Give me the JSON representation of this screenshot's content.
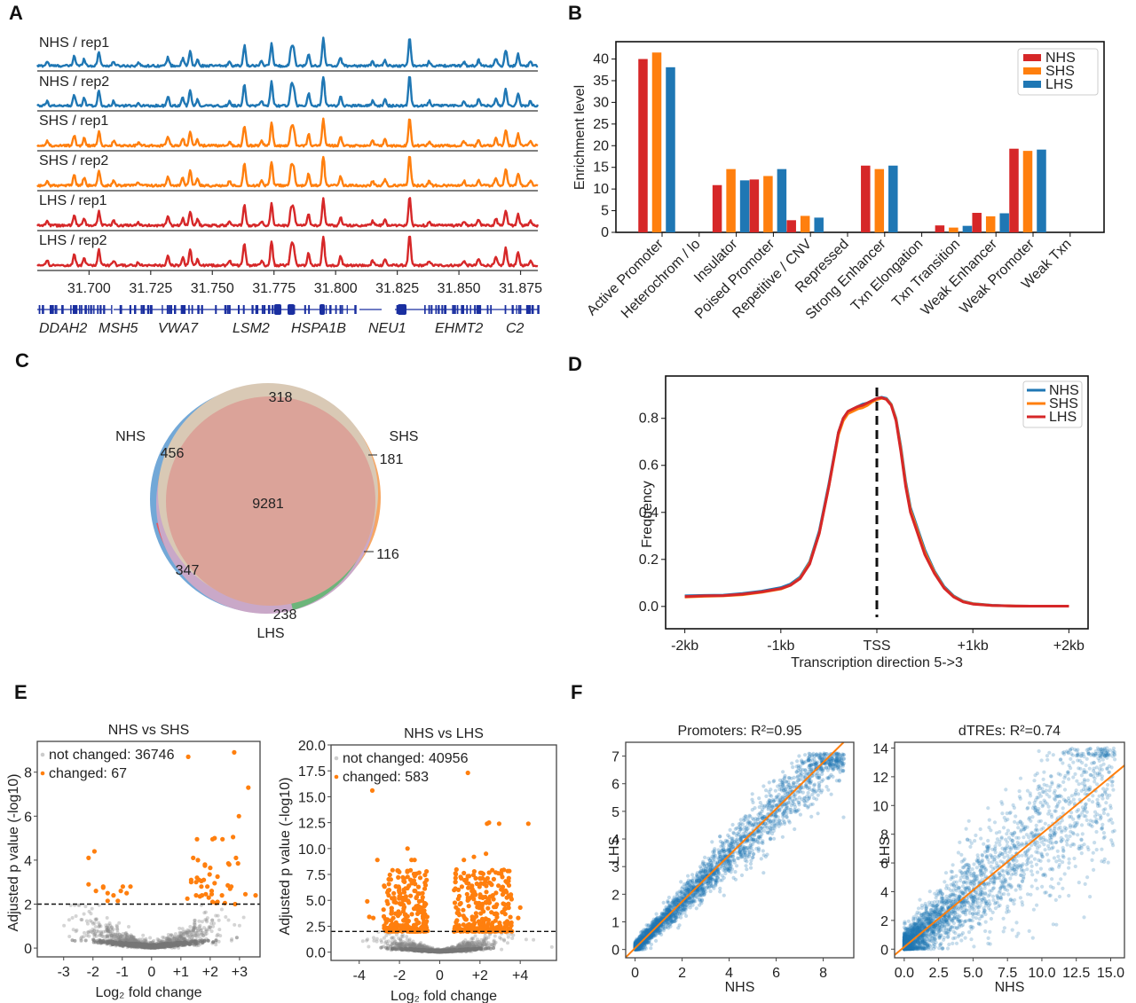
{
  "figure": {
    "panels": [
      "A",
      "B",
      "C",
      "D",
      "E",
      "F"
    ]
  },
  "colors": {
    "NHS": "#1f77b4",
    "SHS": "#ff7f0e",
    "LHS": "#d62728",
    "bar_NHS": "#d62728",
    "bar_SHS": "#ff7f0e",
    "bar_LHS": "#1f77b4",
    "changed": "#ff7f0e",
    "not_changed": "#888888",
    "fit_line": "#ff7f0e",
    "scatter": "#1f77b4",
    "gene_track": "#1a2fa0"
  },
  "chart_data": [
    {
      "panel": "A",
      "type": "line",
      "title": "",
      "tracks": [
        {
          "label": "NHS / rep1",
          "color_key": "NHS"
        },
        {
          "label": "NHS / rep2",
          "color_key": "NHS"
        },
        {
          "label": "SHS / rep1",
          "color_key": "SHS"
        },
        {
          "label": "SHS / rep2",
          "color_key": "SHS"
        },
        {
          "label": "LHS / rep1",
          "color_key": "LHS"
        },
        {
          "label": "LHS / rep2",
          "color_key": "LHS"
        }
      ],
      "xlim": [
        31.679,
        31.882
      ],
      "x_ticks": [
        "31.700",
        "31.725",
        "31.750",
        "31.775",
        "31.800",
        "31.825",
        "31.850",
        "31.875"
      ],
      "x_tick_values": [
        31.7,
        31.725,
        31.75,
        31.775,
        31.8,
        31.825,
        31.85,
        31.875
      ],
      "peaks": [
        {
          "x": 31.683,
          "h": 0.15
        },
        {
          "x": 31.694,
          "h": 0.35
        },
        {
          "x": 31.698,
          "h": 0.25
        },
        {
          "x": 31.704,
          "h": 0.5
        },
        {
          "x": 31.71,
          "h": 0.15
        },
        {
          "x": 31.72,
          "h": 0.1
        },
        {
          "x": 31.732,
          "h": 0.3
        },
        {
          "x": 31.738,
          "h": 0.25
        },
        {
          "x": 31.741,
          "h": 0.5
        },
        {
          "x": 31.744,
          "h": 0.2
        },
        {
          "x": 31.757,
          "h": 0.15
        },
        {
          "x": 31.763,
          "h": 0.7
        },
        {
          "x": 31.77,
          "h": 0.15
        },
        {
          "x": 31.774,
          "h": 0.78
        },
        {
          "x": 31.782,
          "h": 0.6
        },
        {
          "x": 31.783,
          "h": 0.55
        },
        {
          "x": 31.789,
          "h": 0.4
        },
        {
          "x": 31.795,
          "h": 0.95
        },
        {
          "x": 31.802,
          "h": 0.3
        },
        {
          "x": 31.815,
          "h": 0.15
        },
        {
          "x": 31.82,
          "h": 0.2
        },
        {
          "x": 31.83,
          "h": 0.97
        },
        {
          "x": 31.838,
          "h": 0.15
        },
        {
          "x": 31.852,
          "h": 0.15
        },
        {
          "x": 31.858,
          "h": 0.2
        },
        {
          "x": 31.865,
          "h": 0.25
        },
        {
          "x": 31.869,
          "h": 0.55
        },
        {
          "x": 31.874,
          "h": 0.4
        },
        {
          "x": 31.879,
          "h": 0.15
        }
      ],
      "genes": [
        "DDAH2",
        "MSH5",
        "VWA7",
        "LSM2",
        "HSPA1B",
        "NEU1",
        "EHMT2",
        "C2"
      ]
    },
    {
      "panel": "B",
      "type": "bar",
      "title": "",
      "xlabel": "",
      "ylabel": "Enrichment level",
      "ylim": [
        0,
        44
      ],
      "y_ticks": [
        0,
        5,
        10,
        15,
        20,
        25,
        30,
        35,
        40
      ],
      "categories": [
        "Active Promoter",
        "Heterochrom / lo",
        "Insulator",
        "Poised Promoter",
        "Repetitive / CNV",
        "Repressed",
        "Strong Enhancer",
        "Txn Elongation",
        "Txn Transition",
        "Weak Enhancer",
        "Weak Promoter",
        "Weak Txn"
      ],
      "series": [
        {
          "name": "NHS",
          "values": [
            40.0,
            0,
            10.9,
            12.2,
            2.8,
            0,
            15.4,
            0,
            1.6,
            4.5,
            19.3,
            0
          ]
        },
        {
          "name": "SHS",
          "values": [
            41.5,
            0,
            14.6,
            13.0,
            3.8,
            0,
            14.6,
            0,
            1.1,
            3.7,
            18.8,
            0
          ]
        },
        {
          "name": "LHS",
          "values": [
            38.1,
            0,
            12.0,
            14.6,
            3.4,
            0,
            15.4,
            0,
            1.5,
            4.4,
            19.1,
            0
          ]
        }
      ],
      "legend": [
        "NHS",
        "SHS",
        "LHS"
      ],
      "legend_position": "top-right",
      "grid": false
    },
    {
      "panel": "C",
      "type": "venn",
      "sets": [
        "NHS",
        "SHS",
        "LHS"
      ],
      "regions": {
        "all": 9281,
        "NHS_SHS": 318,
        "NHS_only": 456,
        "SHS_only": 181,
        "SHS_LHS": 116,
        "NHS_LHS": 347,
        "LHS_only": 238
      }
    },
    {
      "panel": "D",
      "type": "line",
      "title": "",
      "xlabel": "Transcription direction 5->3",
      "ylabel": "Frequency",
      "x_ticks": [
        "-2kb",
        "-1kb",
        "TSS",
        "+1kb",
        "+2kb"
      ],
      "x_tick_values": [
        -2000,
        -1000,
        0,
        1000,
        2000
      ],
      "xlim": [
        -2200,
        2200
      ],
      "ylim": [
        -0.095,
        0.98
      ],
      "y_ticks": [
        "0.0",
        "0.2",
        "0.4",
        "0.6",
        "0.8"
      ],
      "y_tick_values": [
        0.0,
        0.2,
        0.4,
        0.6,
        0.8
      ],
      "x": [
        -2000,
        -1800,
        -1600,
        -1400,
        -1200,
        -1000,
        -900,
        -800,
        -700,
        -600,
        -500,
        -400,
        -350,
        -300,
        -250,
        -200,
        -150,
        -100,
        -50,
        0,
        50,
        100,
        150,
        200,
        250,
        300,
        350,
        400,
        450,
        500,
        600,
        700,
        800,
        900,
        1000,
        1200,
        1400,
        1600,
        1800,
        2000
      ],
      "series": [
        {
          "name": "NHS",
          "values": [
            0.045,
            0.047,
            0.048,
            0.055,
            0.065,
            0.08,
            0.095,
            0.125,
            0.19,
            0.32,
            0.52,
            0.74,
            0.8,
            0.83,
            0.84,
            0.85,
            0.86,
            0.865,
            0.875,
            0.885,
            0.89,
            0.885,
            0.86,
            0.8,
            0.68,
            0.53,
            0.42,
            0.36,
            0.3,
            0.24,
            0.15,
            0.085,
            0.045,
            0.022,
            0.012,
            0.005,
            0.002,
            0.001,
            0.001,
            0.001
          ]
        },
        {
          "name": "SHS",
          "values": [
            0.04,
            0.043,
            0.045,
            0.05,
            0.06,
            0.074,
            0.09,
            0.12,
            0.185,
            0.31,
            0.51,
            0.73,
            0.79,
            0.82,
            0.83,
            0.84,
            0.845,
            0.855,
            0.87,
            0.88,
            0.885,
            0.882,
            0.858,
            0.795,
            0.67,
            0.52,
            0.41,
            0.35,
            0.29,
            0.23,
            0.145,
            0.08,
            0.042,
            0.02,
            0.011,
            0.004,
            0.002,
            0.001,
            0.001,
            0.001
          ]
        },
        {
          "name": "LHS",
          "values": [
            0.042,
            0.045,
            0.046,
            0.052,
            0.062,
            0.076,
            0.09,
            0.118,
            0.18,
            0.31,
            0.51,
            0.74,
            0.8,
            0.83,
            0.84,
            0.85,
            0.855,
            0.865,
            0.875,
            0.885,
            0.888,
            0.88,
            0.855,
            0.79,
            0.66,
            0.51,
            0.4,
            0.34,
            0.28,
            0.22,
            0.14,
            0.078,
            0.04,
            0.019,
            0.01,
            0.004,
            0.002,
            0.001,
            0.001,
            0.001
          ]
        }
      ],
      "vline": {
        "x": 0,
        "style": "dashed"
      },
      "legend": [
        "NHS",
        "SHS",
        "LHS"
      ],
      "legend_position": "top-right",
      "grid": false
    },
    {
      "panel": "E-left",
      "type": "scatter",
      "title": "NHS vs SHS",
      "xlabel": "Log₂ fold change",
      "ylabel": "Adjusted p value (-log10)",
      "xlim": [
        -3.9,
        3.7
      ],
      "ylim": [
        -0.4,
        9.4
      ],
      "x_ticks": [
        "-3",
        "-2",
        "-1",
        "0",
        "+1",
        "+2",
        "+3"
      ],
      "x_tick_values": [
        -3,
        -2,
        -1,
        0,
        1,
        2,
        3
      ],
      "y_ticks": [
        "0",
        "2",
        "4",
        "6",
        "8"
      ],
      "y_tick_values": [
        0,
        2,
        4,
        6,
        8
      ],
      "threshold": 2,
      "legend": [
        {
          "label": "not changed: 36746",
          "type": "not_changed"
        },
        {
          "label": "changed: 67",
          "type": "changed"
        }
      ],
      "changed_points": [
        [
          -2.15,
          4.1
        ],
        [
          -1.95,
          4.4
        ],
        [
          -2.15,
          2.9
        ],
        [
          -1.9,
          2.6
        ],
        [
          -1.65,
          2.8
        ],
        [
          -1.65,
          2.75
        ],
        [
          -1.5,
          2.5
        ],
        [
          -1.5,
          2.15
        ],
        [
          -1.3,
          2.4
        ],
        [
          -1.15,
          2.15
        ],
        [
          -1.05,
          2.6
        ],
        [
          -0.98,
          2.8
        ],
        [
          -0.85,
          2.5
        ],
        [
          -0.72,
          2.8
        ],
        [
          1.22,
          2.25
        ],
        [
          1.35,
          3.0
        ],
        [
          1.35,
          3.1
        ],
        [
          1.42,
          4.1
        ],
        [
          1.52,
          2.4
        ],
        [
          1.52,
          3.0
        ],
        [
          1.55,
          3.2
        ],
        [
          1.55,
          4.95
        ],
        [
          1.58,
          4.0
        ],
        [
          1.62,
          3.1
        ],
        [
          1.65,
          2.35
        ],
        [
          1.7,
          3.05
        ],
        [
          1.7,
          2.8
        ],
        [
          1.72,
          2.4
        ],
        [
          1.78,
          3.1
        ],
        [
          1.82,
          3.75
        ],
        [
          1.82,
          3.8
        ],
        [
          1.85,
          2.45
        ],
        [
          1.9,
          2.8
        ],
        [
          1.95,
          2.3
        ],
        [
          1.98,
          3.35
        ],
        [
          2.0,
          3.65
        ],
        [
          2.05,
          2.6
        ],
        [
          2.05,
          2.45
        ],
        [
          2.08,
          4.95
        ],
        [
          2.08,
          2.1
        ],
        [
          2.15,
          5.0
        ],
        [
          2.15,
          2.95
        ],
        [
          2.2,
          2.05
        ],
        [
          2.25,
          3.25
        ],
        [
          2.25,
          2.1
        ],
        [
          2.4,
          2.4
        ],
        [
          2.42,
          4.95
        ],
        [
          2.5,
          2.05
        ],
        [
          2.6,
          2.85
        ],
        [
          2.62,
          3.85
        ],
        [
          2.65,
          3.8
        ],
        [
          2.68,
          2.7
        ],
        [
          2.72,
          2.8
        ],
        [
          2.78,
          5.05
        ],
        [
          2.82,
          8.9
        ],
        [
          2.85,
          2.0
        ],
        [
          2.88,
          4.1
        ],
        [
          2.95,
          3.85
        ],
        [
          2.98,
          6.0
        ],
        [
          3.2,
          2.45
        ],
        [
          3.3,
          7.3
        ],
        [
          3.55,
          2.4
        ],
        [
          1.25,
          8.7
        ]
      ]
    },
    {
      "panel": "E-right",
      "type": "scatter",
      "title": "NHS vs LHS",
      "xlabel": "Log₂ fold change",
      "ylabel": "Adjusted p value (-log10)",
      "xlim": [
        -5.4,
        5.8
      ],
      "ylim": [
        -0.8,
        20.0
      ],
      "x_ticks": [
        "-4",
        "-2",
        "0",
        "+2",
        "+4"
      ],
      "x_tick_values": [
        -4,
        -2,
        0,
        2,
        4
      ],
      "y_ticks": [
        "0.0",
        "2.5",
        "5.0",
        "7.5",
        "10.0",
        "12.5",
        "15.0",
        "17.5",
        "20.0"
      ],
      "y_tick_values": [
        0,
        2.5,
        5,
        7.5,
        10,
        12.5,
        15,
        17.5,
        20
      ],
      "threshold": 2,
      "legend": [
        {
          "label": "not changed: 40956",
          "type": "not_changed"
        },
        {
          "label": "changed: 583",
          "type": "changed"
        }
      ],
      "changed_highlights": [
        [
          -3.35,
          15.6
        ],
        [
          1.4,
          17.3
        ],
        [
          2.35,
          12.4
        ],
        [
          2.45,
          12.5
        ],
        [
          2.95,
          12.4
        ],
        [
          4.4,
          12.4
        ],
        [
          -1.6,
          10.0
        ],
        [
          -3.1,
          8.9
        ],
        [
          -1.4,
          8.9
        ],
        [
          -1.25,
          8.9
        ],
        [
          1.2,
          8.9
        ],
        [
          1.7,
          9.2
        ],
        [
          2.3,
          9.5
        ],
        [
          -3.6,
          4.9
        ],
        [
          -3.5,
          3.4
        ],
        [
          -3.3,
          3.3
        ],
        [
          4.0,
          4.3
        ],
        [
          3.9,
          3.3
        ]
      ],
      "changed_cluster_ranges": {
        "left_x": [
          -2.8,
          -0.6
        ],
        "right_x": [
          0.7,
          3.6
        ],
        "y": [
          2.0,
          8.0
        ]
      }
    },
    {
      "panel": "F-left",
      "type": "scatter",
      "title": "Promoters: R²=0.95",
      "xlabel": "NHS",
      "ylabel": "LHS",
      "xlim": [
        -0.4,
        9.3
      ],
      "ylim": [
        -0.3,
        7.5
      ],
      "x_ticks": [
        "0",
        "2",
        "4",
        "6",
        "8"
      ],
      "x_tick_values": [
        0,
        2,
        4,
        6,
        8
      ],
      "y_ticks": [
        "0",
        "1",
        "2",
        "3",
        "4",
        "5",
        "6",
        "7"
      ],
      "y_tick_values": [
        0,
        1,
        2,
        3,
        4,
        5,
        6,
        7
      ],
      "fit": {
        "slope": 0.84,
        "intercept": 0.05
      },
      "r_squared": 0.95
    },
    {
      "panel": "F-right",
      "type": "scatter",
      "title": "dTREs: R²=0.74",
      "xlabel": "NHS",
      "ylabel": "LHS",
      "xlim": [
        -0.7,
        16.0
      ],
      "ylim": [
        -0.6,
        14.4
      ],
      "x_ticks": [
        "0.0",
        "2.5",
        "5.0",
        "7.5",
        "10.0",
        "12.5",
        "15.0"
      ],
      "x_tick_values": [
        0,
        2.5,
        5,
        7.5,
        10,
        12.5,
        15
      ],
      "y_ticks": [
        "0",
        "2",
        "4",
        "6",
        "8",
        "10",
        "12",
        "14"
      ],
      "y_tick_values": [
        0,
        2,
        4,
        6,
        8,
        10,
        12,
        14
      ],
      "fit": {
        "slope": 0.79,
        "intercept": 0.15
      },
      "r_squared": 0.74
    }
  ]
}
